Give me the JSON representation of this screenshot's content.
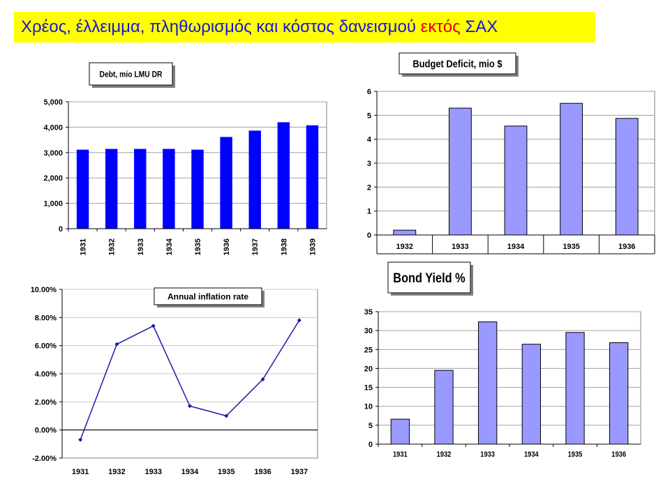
{
  "banner": {
    "text_before": "Χρέος, έλλειμμα, πληθωρισμός και κόστος δανεισμού ",
    "text_highlight": "εκτός",
    "text_after": " ΣΑΧ",
    "color": "#1515d6",
    "highlight_color": "#e00000",
    "background": "#ffff00"
  },
  "chart_data": [
    {
      "id": "debt",
      "type": "bar",
      "title": "Debt, mio LMU DR",
      "xlabel": "",
      "ylabel": "",
      "categories": [
        "1931",
        "1932",
        "1933",
        "1934",
        "1935",
        "1936",
        "1937",
        "1938",
        "1939"
      ],
      "values": [
        3100,
        3130,
        3130,
        3130,
        3100,
        3600,
        3850,
        4180,
        4060
      ],
      "ylim": [
        0,
        5000
      ],
      "yticks": [
        "0",
        "1,000",
        "2,000",
        "3,000",
        "4,000",
        "5,000"
      ],
      "grid": true,
      "color": "#0000ff"
    },
    {
      "id": "deficit",
      "type": "bar",
      "title": "Budget Deficit, mio $",
      "xlabel": "",
      "ylabel": "",
      "categories": [
        "1932",
        "1933",
        "1934",
        "1935",
        "1936"
      ],
      "values": [
        0.2,
        5.3,
        4.55,
        5.5,
        4.87
      ],
      "ylim": [
        0,
        6
      ],
      "yticks": [
        "0",
        "1",
        "2",
        "3",
        "4",
        "5",
        "6"
      ],
      "grid": true,
      "color": "#9999ff"
    },
    {
      "id": "inflation",
      "type": "line",
      "title": "Annual inflation rate",
      "xlabel": "",
      "ylabel": "",
      "categories": [
        "1931",
        "1932",
        "1933",
        "1934",
        "1935",
        "1936",
        "1937"
      ],
      "values": [
        -0.7,
        6.1,
        7.4,
        1.7,
        1.0,
        3.6,
        7.8
      ],
      "ylim": [
        -2,
        10
      ],
      "yticks": [
        "-2.00%",
        "0.00%",
        "2.00%",
        "4.00%",
        "6.00%",
        "8.00%",
        "10.00%"
      ],
      "grid": true,
      "color": "#1a1aa8"
    },
    {
      "id": "bond",
      "type": "bar",
      "title": "Bond Yield %",
      "xlabel": "",
      "ylabel": "",
      "categories": [
        "1931",
        "1932",
        "1933",
        "1934",
        "1935",
        "1936"
      ],
      "values": [
        6.6,
        19.5,
        32.3,
        26.4,
        29.5,
        26.8
      ],
      "ylim": [
        0,
        35
      ],
      "yticks": [
        "0",
        "5",
        "10",
        "15",
        "20",
        "25",
        "30",
        "35"
      ],
      "grid": true,
      "color": "#9999ff"
    }
  ]
}
